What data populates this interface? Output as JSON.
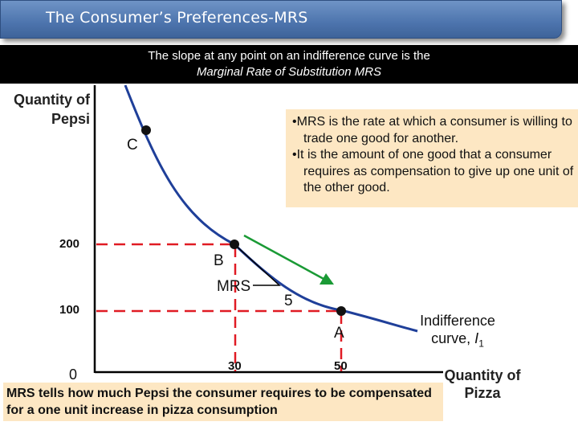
{
  "title": "The Consumer’s Preferences-MRS",
  "subtitle": {
    "line1": "The slope at any point on an indifference curve is the",
    "line2": "Marginal Rate of Substitution MRS"
  },
  "info_box": {
    "bullet_symbol": "•",
    "bullets": [
      "MRS is the rate at which a consumer is willing to trade one good for another.",
      "It is the amount of one good that a consumer requires as compensation to give up one unit of the other good."
    ]
  },
  "bottom_note": "MRS tells how much Pepsi the consumer requires to be compensated for a one unit increase in pizza consumption",
  "y_axis_label": "Quantity of Pepsi",
  "x_axis_label": "Quantity of Pizza",
  "origin_label": "0",
  "y_ticks": [
    "200",
    "100"
  ],
  "x_ticks": [
    "30",
    "50"
  ],
  "points": {
    "a": "A",
    "b": "B",
    "c": "C"
  },
  "mrs_label": "MRS",
  "mrs_value": "5",
  "curve_label": {
    "text": "Indifference curve,",
    "symbol": "I",
    "subscript": "1"
  },
  "colors": {
    "curve": "#1f3f99",
    "dashed": "#e01b24",
    "arrow": "#1a9a35",
    "box_fill": "#fde7c3",
    "title_bar": "#4d74ad"
  }
}
